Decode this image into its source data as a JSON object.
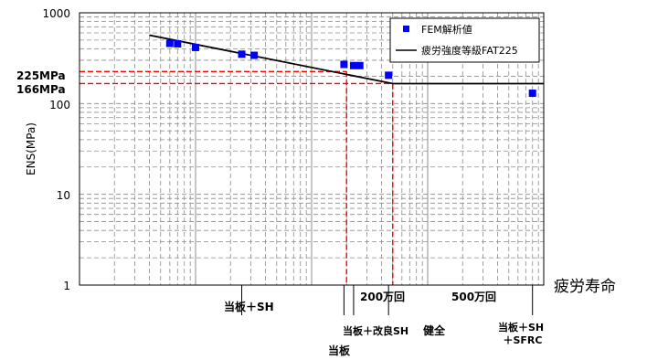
{
  "chart_data": {
    "type": "scatter",
    "title": "",
    "xlabel": "疲労寿命",
    "ylabel": "ENS(MPa)",
    "y_scale": "log",
    "ylim": [
      1,
      1000
    ],
    "y_ticks": [
      "1",
      "10",
      "100",
      "1000"
    ],
    "x_scale": "log",
    "xlim": [
      10000.0,
      100000000.0
    ],
    "grid": true,
    "legend": {
      "position": "top-right",
      "items": [
        {
          "name": "FEM解析値",
          "color": "#0000ff",
          "marker": "square"
        },
        {
          "name": "疲労強度等級FAT225",
          "color": "#000000",
          "marker": "line"
        }
      ]
    },
    "series": [
      {
        "name": "FEM解析値",
        "type": "scatter",
        "color": "#0000ff",
        "points": [
          {
            "x": 60000,
            "y": 460
          },
          {
            "x": 70000,
            "y": 455
          },
          {
            "x": 100000,
            "y": 415
          },
          {
            "x": 250000,
            "y": 350
          },
          {
            "x": 320000,
            "y": 340
          },
          {
            "x": 1900000,
            "y": 270
          },
          {
            "x": 2300000,
            "y": 262
          },
          {
            "x": 2600000,
            "y": 262
          },
          {
            "x": 4600000,
            "y": 205
          },
          {
            "x": 80000000,
            "y": 130
          }
        ]
      },
      {
        "name": "疲労強度等級FAT225",
        "type": "line",
        "color": "#000000",
        "points": [
          {
            "x": 40000,
            "y": 567
          },
          {
            "x": 5000000,
            "y": 166
          },
          {
            "x": 100000000,
            "y": 166
          }
        ]
      }
    ],
    "reference_lines": [
      {
        "label": "225MPa",
        "y": 225,
        "x_end": 2000000,
        "color": "#ff0000"
      },
      {
        "label": "166MPa",
        "y": 166,
        "x_end": 5000000,
        "color": "#ff0000"
      },
      {
        "label": "200万回",
        "x": 2000000,
        "y_end": 225,
        "color": "#ff0000"
      },
      {
        "label": "500万回",
        "x": 5000000,
        "y_end": 166,
        "color": "#ff0000"
      }
    ],
    "annotations": [
      {
        "label": "当板＋SH",
        "x": 250000
      },
      {
        "label": "当板",
        "x": 1900000
      },
      {
        "label": "当板＋改良SH",
        "x": 2300000
      },
      {
        "label": "健全",
        "x": 4600000
      },
      {
        "label": "当板＋SH\n＋SFRC",
        "x": 80000000
      }
    ]
  }
}
